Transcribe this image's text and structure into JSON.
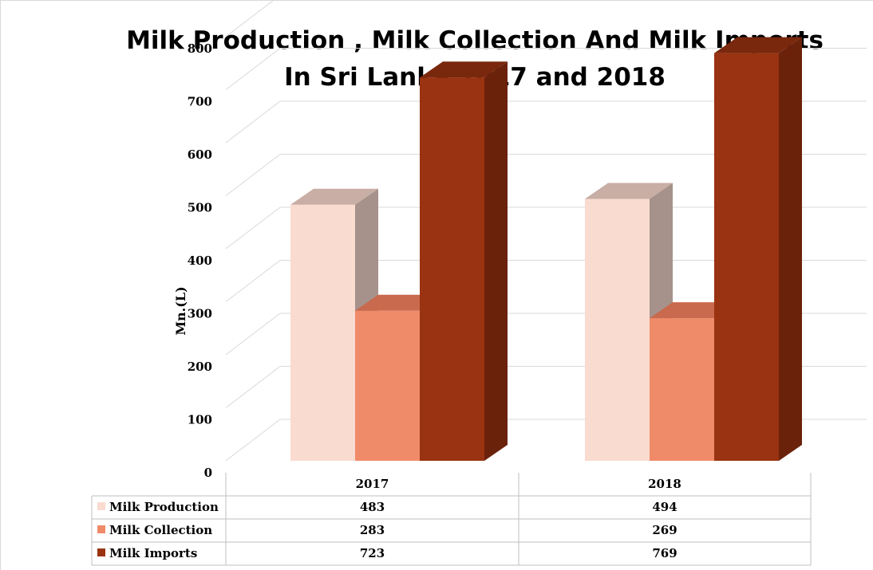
{
  "chart_data": {
    "type": "bar",
    "title": "Milk Production , Milk Collection And Milk Imports In Sri Lanka 2017 and 2018",
    "title_lines": [
      "Milk Production , Milk Collection And Milk Imports",
      "In Sri Lanka 2017 and 2018"
    ],
    "ylabel": "Mn.(L)",
    "xlabel": "",
    "ylim": [
      0,
      800
    ],
    "yticks": [
      0,
      100,
      200,
      300,
      400,
      500,
      600,
      700,
      800
    ],
    "categories": [
      "2017",
      "2018"
    ],
    "series": [
      {
        "name": "Milk Production",
        "values": [
          483,
          494
        ],
        "color": "#f9dbd0",
        "side": "#a6928b",
        "top": "#c8aea5"
      },
      {
        "name": "Milk Collection",
        "values": [
          283,
          269
        ],
        "color": "#f08b6a",
        "side": "#b55e48",
        "top": "#c9694d"
      },
      {
        "name": "Milk Imports",
        "values": [
          723,
          769
        ],
        "color": "#993311",
        "side": "#6b220b",
        "top": "#7a280d"
      }
    ],
    "grid": true,
    "style": "3d-clustered-column",
    "legend": "data-table"
  }
}
